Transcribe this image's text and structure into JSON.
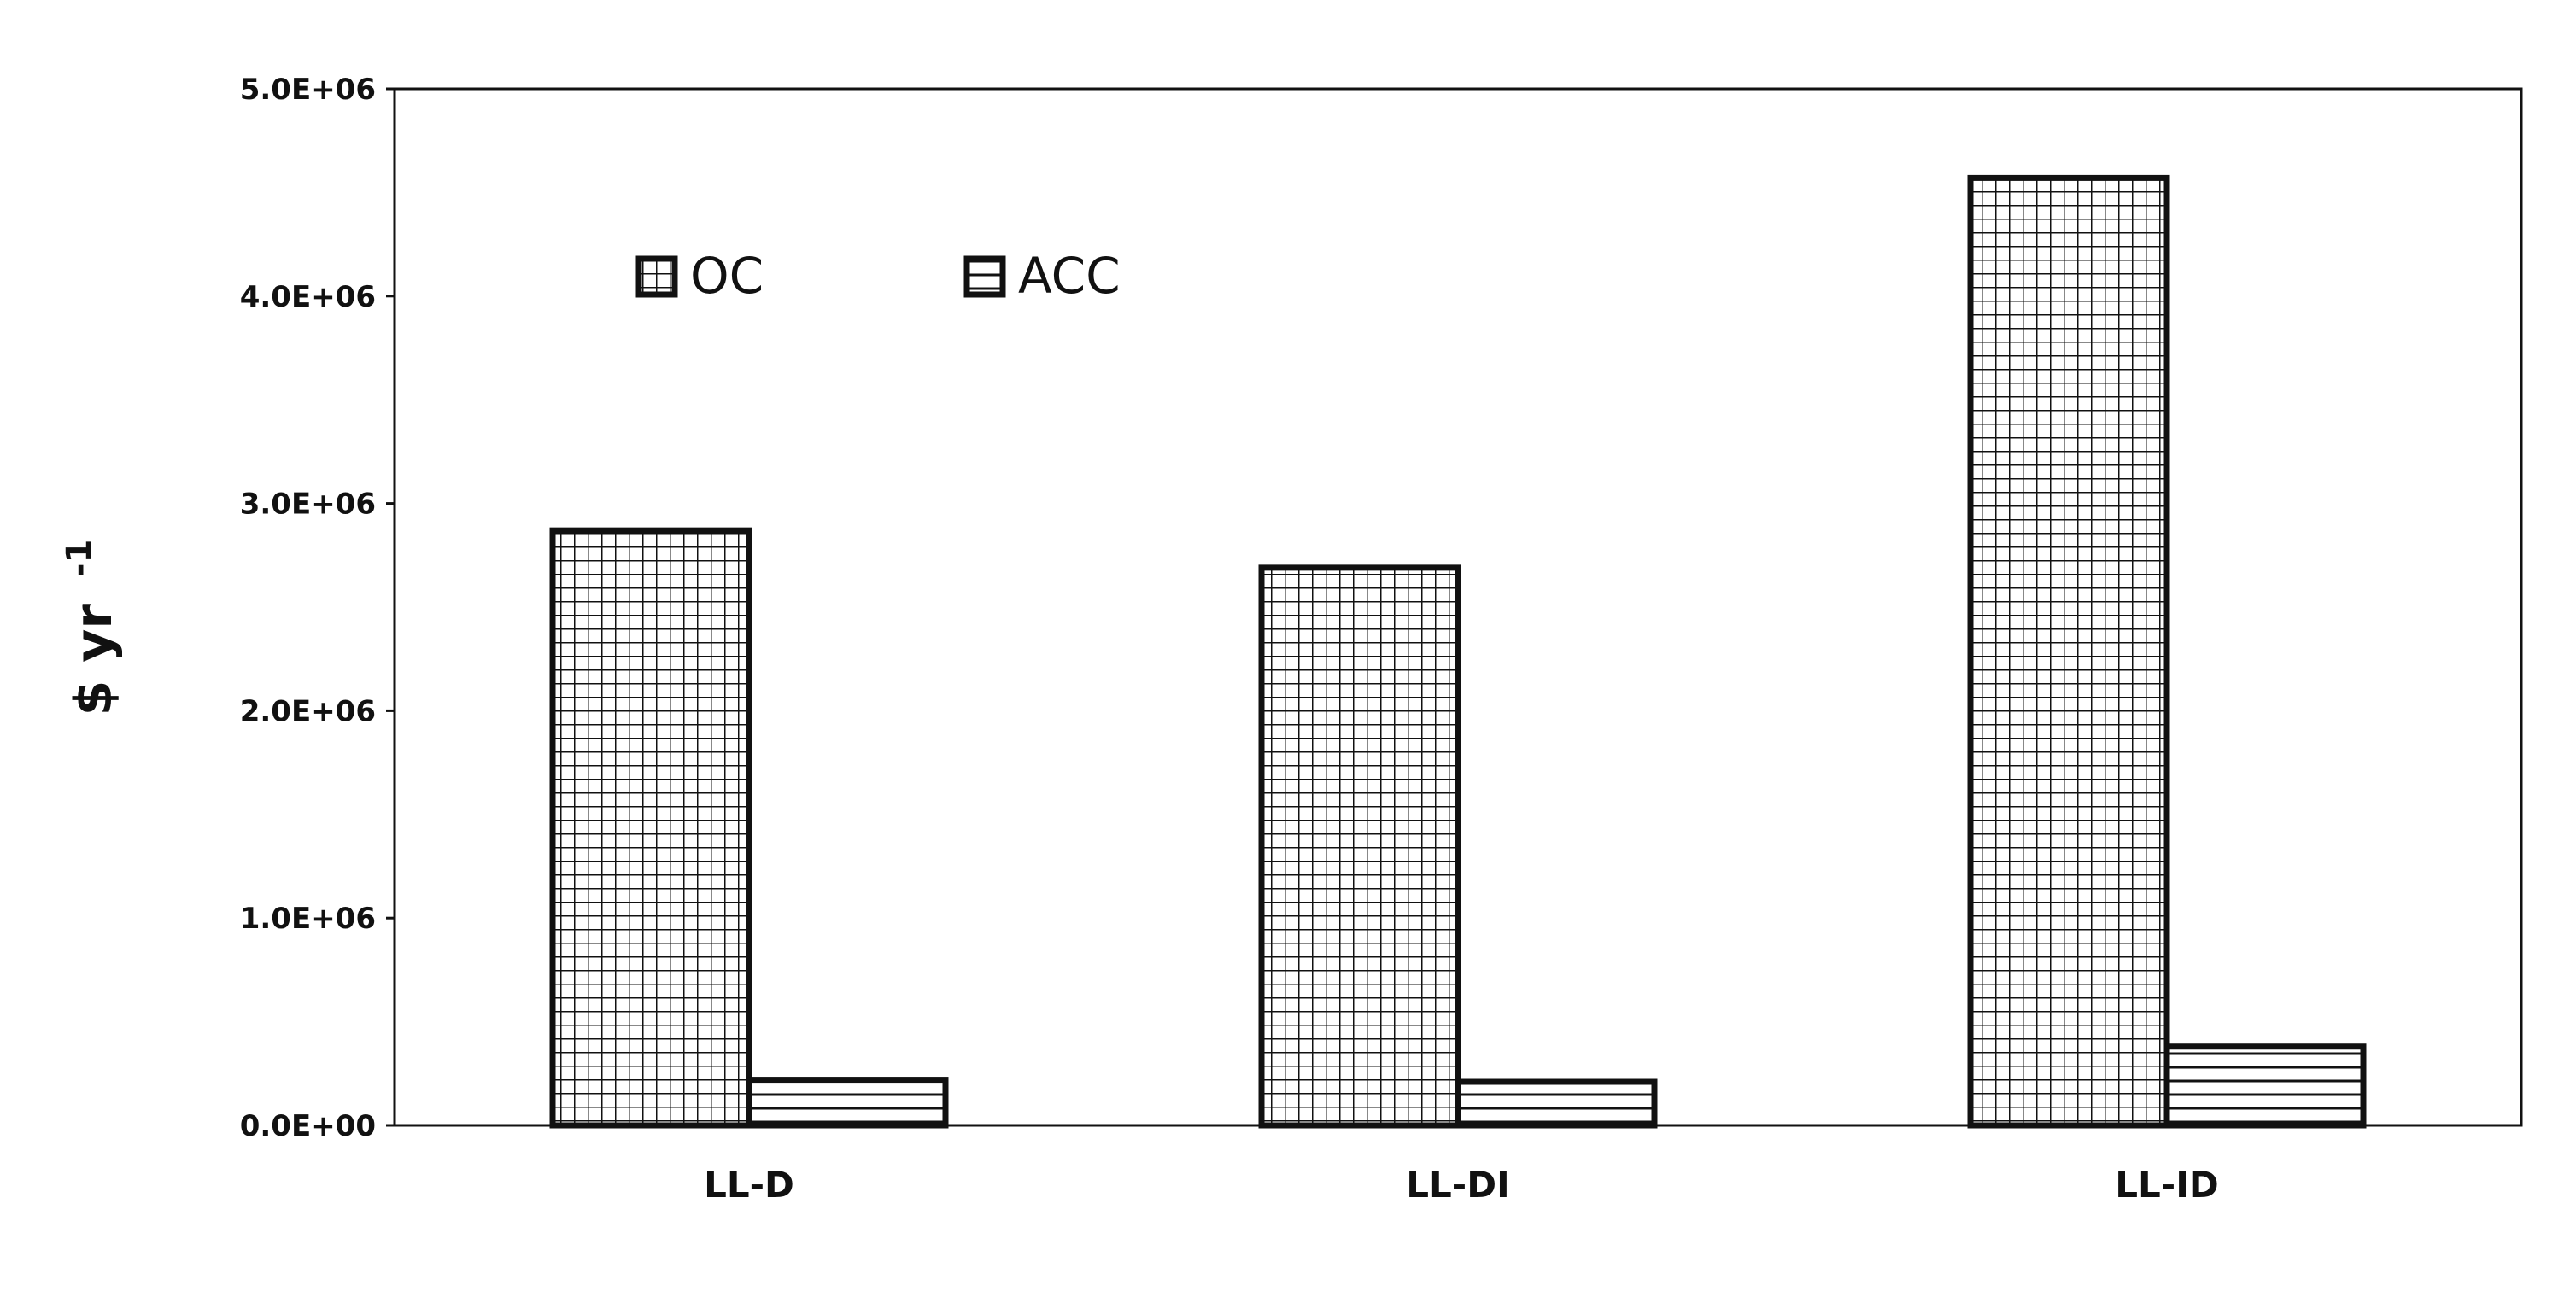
{
  "chart_data": {
    "type": "bar",
    "title": "",
    "xlabel": "",
    "ylabel": "$ yr",
    "ylabel_superscript": "-1",
    "categories": [
      "LL-D",
      "LL-DI",
      "LL-ID"
    ],
    "series": [
      {
        "name": "OC",
        "values": [
          2870000,
          2690000,
          4570000
        ],
        "pattern": "grid"
      },
      {
        "name": "ACC",
        "values": [
          220000,
          210000,
          380000
        ],
        "pattern": "horizontal-lines"
      }
    ],
    "ylim": [
      0,
      5000000
    ],
    "yticks": [
      0,
      1000000,
      2000000,
      3000000,
      4000000,
      5000000
    ],
    "ytick_labels": [
      "0.0E+00",
      "1.0E+06",
      "2.0E+06",
      "3.0E+06",
      "4.0E+06",
      "5.0E+06"
    ],
    "grid": false,
    "legend_position": "top-left",
    "colors": {
      "stroke": "#111111",
      "fill": "#ffffff"
    }
  }
}
